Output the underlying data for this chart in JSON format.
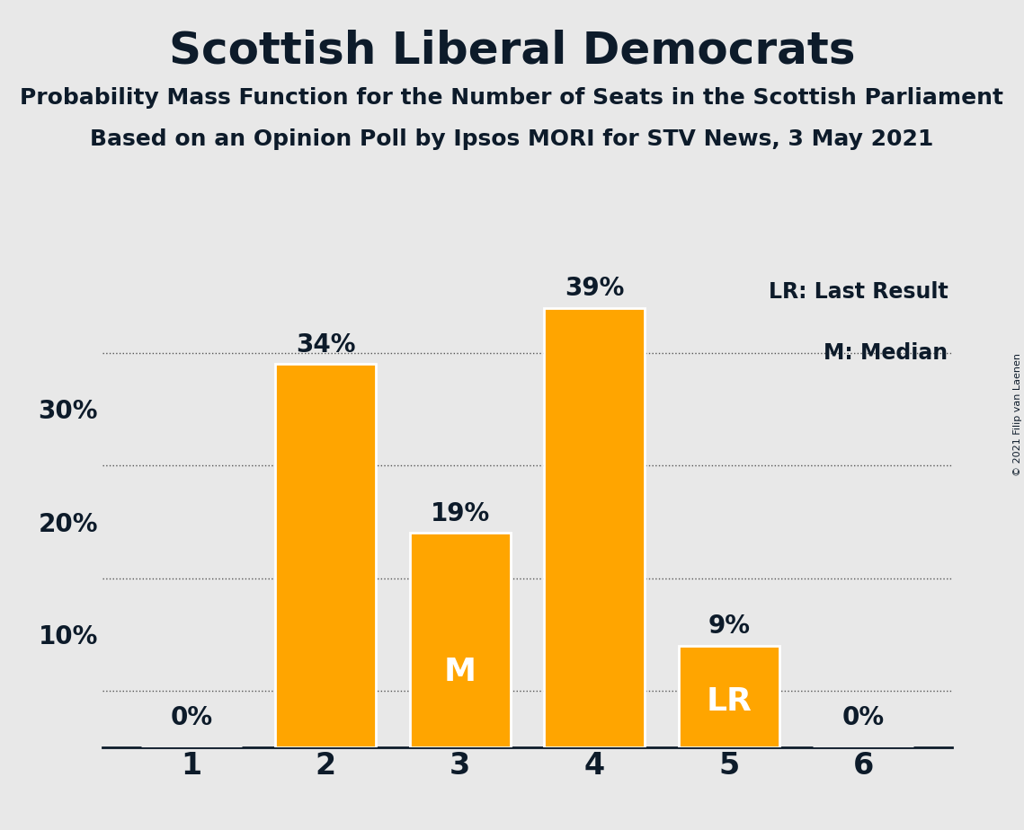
{
  "title": "Scottish Liberal Democrats",
  "subtitle1": "Probability Mass Function for the Number of Seats in the Scottish Parliament",
  "subtitle2": "Based on an Opinion Poll by Ipsos MORI for STV News, 3 May 2021",
  "copyright": "© 2021 Filip van Laenen",
  "categories": [
    1,
    2,
    3,
    4,
    5,
    6
  ],
  "values": [
    0,
    34,
    19,
    39,
    9,
    0
  ],
  "bar_color": "#FFA500",
  "background_color": "#E8E8E8",
  "text_color": "#0D1B2A",
  "bar_text_color_inside": "#FFFFFF",
  "median_bar": 3,
  "last_result_bar": 5,
  "legend_lr": "LR: Last Result",
  "legend_m": "M: Median",
  "yticks_major": [
    10,
    20,
    30
  ],
  "yticks_minor": [
    5,
    10,
    15,
    20,
    25,
    30,
    35
  ],
  "ylim": [
    0,
    42
  ],
  "bar_width": 0.75,
  "title_fontsize": 36,
  "subtitle_fontsize": 18,
  "ytick_fontsize": 20,
  "xtick_fontsize": 24,
  "label_fontsize": 20,
  "inside_label_fontsize": 26,
  "legend_fontsize": 17
}
